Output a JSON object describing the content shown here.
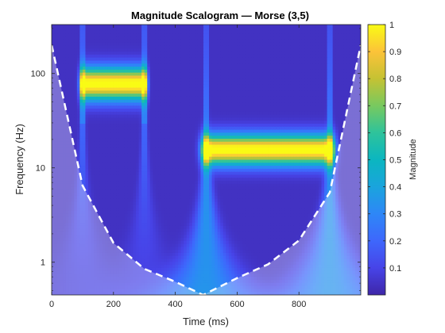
{
  "chart_data": {
    "type": "heatmap",
    "title": "Magnitude Scalogram — Morse (3,5)",
    "xlabel": "Time (ms)",
    "ylabel": "Frequency (Hz)",
    "xlim": [
      0,
      1000
    ],
    "ylim": [
      0.45,
      330
    ],
    "y_scale": "log",
    "x_ticks": [
      0,
      200,
      400,
      600,
      800
    ],
    "y_ticks": [
      1,
      10,
      100
    ],
    "y_tick_labels": [
      "1",
      "10",
      "100"
    ],
    "colormap": "parula",
    "colorbar": {
      "label": "Magnitude",
      "ticks": [
        0.1,
        0.2,
        0.3,
        0.4,
        0.5,
        0.6,
        0.7,
        0.8,
        0.9,
        1
      ],
      "tick_labels": [
        "0.1",
        "0.2",
        "0.3",
        "0.4",
        "0.5",
        "0.6",
        "0.7",
        "0.8",
        "0.9",
        "1"
      ],
      "range": [
        0,
        1
      ]
    },
    "components": [
      {
        "t_start": 100,
        "t_end": 300,
        "f_low": 50,
        "f_high": 120,
        "peak": 1.0
      },
      {
        "t_start": 500,
        "t_end": 900,
        "f_low": 12,
        "f_high": 20,
        "peak": 1.0
      }
    ],
    "cone_of_influence": {
      "style": "white dashed",
      "t": [
        0,
        100,
        200,
        300,
        400,
        490,
        600,
        700,
        800,
        900,
        1000
      ],
      "f": [
        200,
        6.5,
        1.6,
        0.85,
        0.62,
        0.45,
        0.68,
        0.95,
        1.7,
        5.5,
        200
      ]
    }
  }
}
